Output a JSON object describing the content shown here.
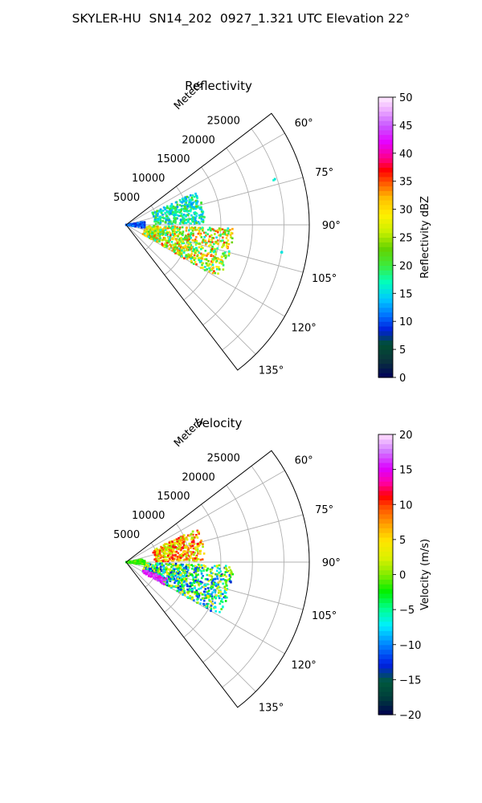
{
  "figure_title": "SKYLER-HU  SN14_202  0927_1.321 UTC Elevation 22°",
  "chart_data": [
    {
      "type": "heatmap",
      "subtype": "polar sector (radar PPI)",
      "title": "Reflectivity",
      "radial_axis_label": "Meters",
      "r_ticks": [
        5000,
        10000,
        15000,
        20000,
        25000
      ],
      "r_tick_labels": [
        "5000",
        "10000",
        "15000",
        "20000",
        "25000"
      ],
      "r_max": 29000,
      "angle_range_deg": [
        52.5,
        142.5
      ],
      "angle_ticks": [
        60,
        75,
        90,
        105,
        120,
        135
      ],
      "angle_tick_labels": [
        "60°",
        "75°",
        "90°",
        "105°",
        "120°",
        "135°"
      ],
      "grid": true,
      "colorbar": {
        "label": "Reflectivity dBZ",
        "range": [
          0,
          50
        ],
        "ticks": [
          0,
          5,
          10,
          15,
          20,
          25,
          30,
          35,
          40,
          45,
          50
        ],
        "tick_labels": [
          "0",
          "5",
          "10",
          "15",
          "20",
          "25",
          "30",
          "35",
          "40",
          "45",
          "50"
        ],
        "placement": "right"
      },
      "echo_regions": [
        {
          "angle_range_deg": [
            65,
            89
          ],
          "range_m": [
            4500,
            12500
          ],
          "value_range": [
            12,
            22
          ],
          "description": "northern echo band"
        },
        {
          "angle_range_deg": [
            92,
            120
          ],
          "range_m": [
            3000,
            17000
          ],
          "value_range": [
            15,
            36
          ],
          "description": "southern echo mass"
        },
        {
          "angle_range_deg": [
            80,
            100
          ],
          "range_m": [
            0,
            3000
          ],
          "value_range": [
            8,
            12
          ],
          "description": "near-radar clutter"
        },
        {
          "angle_range_deg": [
            73,
            73
          ],
          "range_m": [
            24500,
            24500
          ],
          "value_range": [
            15,
            18
          ],
          "description": "isolated speck"
        },
        {
          "angle_range_deg": [
            100,
            100
          ],
          "range_m": [
            25000,
            25000
          ],
          "value_range": [
            15,
            18
          ],
          "description": "isolated speck"
        }
      ]
    },
    {
      "type": "heatmap",
      "subtype": "polar sector (radar PPI)",
      "title": "Velocity",
      "radial_axis_label": "Meters",
      "r_ticks": [
        5000,
        10000,
        15000,
        20000,
        25000
      ],
      "r_tick_labels": [
        "5000",
        "10000",
        "15000",
        "20000",
        "25000"
      ],
      "r_max": 29000,
      "angle_range_deg": [
        52.5,
        142.5
      ],
      "angle_ticks": [
        60,
        75,
        90,
        105,
        120,
        135
      ],
      "angle_tick_labels": [
        "60°",
        "75°",
        "90°",
        "105°",
        "120°",
        "135°"
      ],
      "grid": true,
      "colorbar": {
        "label": "Velocity (m/s)",
        "range": [
          -20,
          20
        ],
        "ticks": [
          -20,
          -15,
          -10,
          -5,
          0,
          5,
          10,
          15,
          20
        ],
        "tick_labels": [
          "−20",
          "−15",
          "−10",
          "−5",
          "0",
          "5",
          "10",
          "15",
          "20"
        ],
        "placement": "right"
      },
      "echo_regions": [
        {
          "angle_range_deg": [
            65,
            89
          ],
          "range_m": [
            4500,
            12500
          ],
          "value_range": [
            0,
            12
          ],
          "description": "northern echo band (outbound)"
        },
        {
          "angle_range_deg": [
            92,
            120
          ],
          "range_m": [
            3000,
            17000
          ],
          "value_range": [
            -14,
            5
          ],
          "description": "southern echo mass"
        },
        {
          "angle_range_deg": [
            112,
            122
          ],
          "range_m": [
            3000,
            7000
          ],
          "value_range": [
            14,
            17
          ],
          "description": "folded velocity patch"
        },
        {
          "angle_range_deg": [
            80,
            100
          ],
          "range_m": [
            0,
            3000
          ],
          "value_range": [
            -3,
            0
          ],
          "description": "near-radar clutter"
        }
      ]
    }
  ]
}
